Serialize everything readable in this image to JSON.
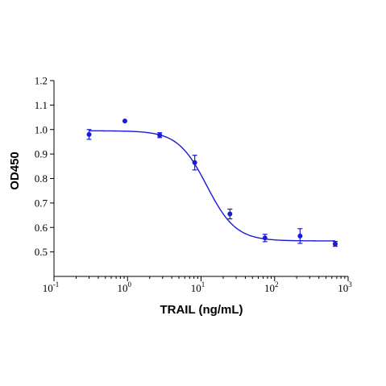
{
  "chart_data": {
    "type": "scatter",
    "title": "",
    "xlabel": "TRAIL (ng/mL)",
    "ylabel": "OD450",
    "x_scale": "log",
    "xlim": [
      0.1,
      1000
    ],
    "ylim": [
      0.4,
      1.2
    ],
    "x_ticks": [
      {
        "value": 0.1,
        "base": "10",
        "exp": "-1"
      },
      {
        "value": 1,
        "base": "10",
        "exp": "0"
      },
      {
        "value": 10,
        "base": "10",
        "exp": "1"
      },
      {
        "value": 100,
        "base": "10",
        "exp": "2"
      },
      {
        "value": 1000,
        "base": "10",
        "exp": "3"
      }
    ],
    "y_ticks": [
      {
        "value": 0.5,
        "label": "0.5"
      },
      {
        "value": 0.6,
        "label": "0.6"
      },
      {
        "value": 0.7,
        "label": "0.7"
      },
      {
        "value": 0.8,
        "label": "0.8"
      },
      {
        "value": 0.9,
        "label": "0.9"
      },
      {
        "value": 1.0,
        "label": "1.0"
      },
      {
        "value": 1.1,
        "label": "1.1"
      },
      {
        "value": 1.2,
        "label": "1.2"
      }
    ],
    "points": [
      {
        "x": 0.3,
        "y": 0.98,
        "err": 0.02
      },
      {
        "x": 0.92,
        "y": 1.035,
        "err": 0
      },
      {
        "x": 2.74,
        "y": 0.977,
        "err": 0.01
      },
      {
        "x": 8.2,
        "y": 0.865,
        "err": 0.03
      },
      {
        "x": 24.7,
        "y": 0.655,
        "err": 0.02
      },
      {
        "x": 74,
        "y": 0.557,
        "err": 0.015
      },
      {
        "x": 222,
        "y": 0.565,
        "err": 0.03
      },
      {
        "x": 667,
        "y": 0.533,
        "err": 0.01
      }
    ],
    "fit": {
      "model": "4PL",
      "top": 0.995,
      "bottom": 0.545,
      "ec50": 12,
      "hill": 2.2
    },
    "color": "#1a1adb",
    "grid": false,
    "legend": "none"
  }
}
